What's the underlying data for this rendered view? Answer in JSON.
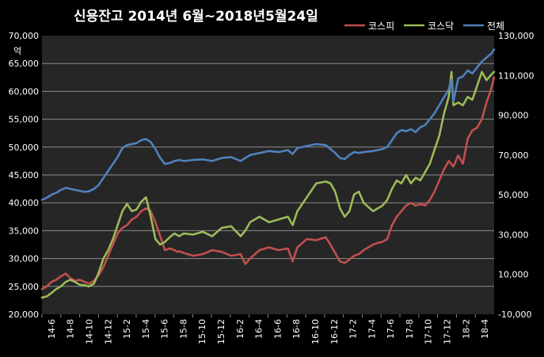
{
  "chart_data": {
    "type": "line",
    "title": "신용잔고  2014년 6월~2018년5월24일",
    "ylabel_left_unit": "억",
    "legend_position": "top-right",
    "grid": true,
    "colors": {
      "background": "#000000",
      "plot_area": "#262626",
      "grid": "#8c8c8c",
      "kospi": "#c0504d",
      "kosdaq": "#9bbb59",
      "total": "#4f81bd"
    },
    "y_left": {
      "min": 20000,
      "max": 70000,
      "ticks": [
        20000,
        25000,
        30000,
        35000,
        40000,
        45000,
        50000,
        55000,
        60000,
        65000,
        70000
      ],
      "tick_labels": [
        "20,000",
        "25,000",
        "30,000",
        "35,000",
        "40,000",
        "45,000",
        "50,000",
        "55,000",
        "60,000",
        "65,000",
        "70,000"
      ]
    },
    "y_right": {
      "min": -10000,
      "max": 130000,
      "ticks": [
        -10000,
        10000,
        30000,
        50000,
        70000,
        90000,
        110000,
        130000
      ],
      "tick_labels": [
        "-10,000",
        "10,000",
        "30,000",
        "50,000",
        "70,000",
        "90,000",
        "110,000",
        "130,000"
      ]
    },
    "x_tick_labels": [
      "14-6",
      "14-8",
      "14-10",
      "14-12",
      "15-2",
      "15-4",
      "15-6",
      "15-8",
      "15-10",
      "15-12",
      "16-2",
      "16-4",
      "16-6",
      "16-8",
      "16-10",
      "16-12",
      "17-2",
      "17-4",
      "17-6",
      "17-8",
      "17-10",
      "17-12",
      "18-2",
      "18-4"
    ],
    "x_range": [
      0,
      47.8
    ],
    "series": [
      {
        "name": "코스피",
        "key": "kospi",
        "axis": "left",
        "x": [
          0,
          0.5,
          1,
          1.5,
          2,
          2.5,
          3,
          3.5,
          4,
          4.5,
          5,
          5.5,
          6,
          6.5,
          7,
          7.5,
          8,
          8.5,
          9,
          9.5,
          10,
          10.5,
          11,
          11.5,
          12,
          12.5,
          13,
          13.5,
          14,
          14.3,
          14.5,
          15,
          16,
          17,
          18,
          19,
          20,
          21,
          21.5,
          22,
          23,
          24,
          25,
          26,
          26.5,
          27,
          28,
          29,
          30,
          30.5,
          31,
          31.5,
          32,
          32.5,
          33,
          33.5,
          34,
          35,
          35.5,
          36,
          36.5,
          37,
          37.5,
          38,
          38.5,
          39,
          39.5,
          40,
          40.5,
          41,
          41.5,
          42,
          42.5,
          43,
          43.5,
          44,
          44.5,
          45,
          45.5,
          46,
          46.5,
          47,
          47.5,
          47.8
        ],
        "values": [
          24500,
          25000,
          25800,
          26200,
          26800,
          27300,
          26500,
          26000,
          26200,
          25800,
          25500,
          26000,
          27000,
          28500,
          30500,
          32500,
          34500,
          35500,
          36000,
          37000,
          37500,
          38500,
          39000,
          38500,
          36500,
          34000,
          31500,
          31800,
          31500,
          31200,
          31300,
          31000,
          30500,
          30800,
          31500,
          31200,
          30500,
          30800,
          29000,
          30000,
          31500,
          32000,
          31500,
          31800,
          29500,
          32000,
          33500,
          33300,
          33800,
          32500,
          31000,
          29500,
          29200,
          29800,
          30500,
          30800,
          31500,
          32500,
          32800,
          33000,
          33500,
          36000,
          37500,
          38500,
          39500,
          40000,
          39500,
          39800,
          39500,
          40500,
          42000,
          44000,
          46000,
          47500,
          46500,
          48500,
          47000,
          51500,
          53000,
          53500,
          55000,
          58000,
          60500,
          62500
        ]
      },
      {
        "name": "코스닥",
        "key": "kosdaq",
        "axis": "left",
        "x": [
          0,
          0.5,
          1,
          1.5,
          2,
          2.5,
          3,
          3.5,
          4,
          4.5,
          5,
          5.5,
          6,
          6.5,
          7,
          7.5,
          8,
          8.5,
          9,
          9.5,
          10,
          10.5,
          11,
          11.5,
          12,
          12.5,
          13,
          13.5,
          14,
          14.5,
          15,
          16,
          17,
          18,
          19,
          20,
          21,
          21.5,
          22,
          23,
          24,
          25,
          26,
          26.5,
          27,
          28,
          29,
          30,
          30.5,
          31,
          31.5,
          32,
          32.5,
          33,
          33.5,
          34,
          35,
          35.5,
          36,
          36.5,
          37,
          37.5,
          38,
          38.5,
          39,
          39.5,
          40,
          40.5,
          41,
          41.5,
          42,
          42.5,
          43,
          43.3,
          43.5,
          44,
          44.5,
          45,
          45.5,
          46,
          46.5,
          47,
          47.5,
          47.8
        ],
        "values": [
          23000,
          23200,
          23800,
          24500,
          25000,
          25800,
          26200,
          25800,
          25300,
          25200,
          25000,
          25500,
          27500,
          30000,
          31500,
          33500,
          36000,
          38500,
          39800,
          38500,
          38800,
          40200,
          41000,
          37500,
          33500,
          32500,
          33000,
          33800,
          34500,
          34000,
          34500,
          34300,
          34800,
          34000,
          35500,
          35800,
          34000,
          35000,
          36500,
          37500,
          36500,
          37000,
          37500,
          36000,
          38500,
          41000,
          43500,
          43800,
          43500,
          42000,
          39000,
          37500,
          38500,
          41500,
          42000,
          40000,
          38500,
          39000,
          39500,
          40500,
          42500,
          44000,
          43500,
          45000,
          43500,
          44500,
          44000,
          45500,
          47000,
          49500,
          52000,
          56000,
          59000,
          63500,
          57500,
          58000,
          57500,
          59000,
          58500,
          61000,
          63500,
          62000,
          63000,
          63500
        ]
      },
      {
        "name": "전체",
        "key": "total",
        "axis": "right",
        "x": [
          0,
          0.5,
          1,
          1.5,
          2,
          2.5,
          3,
          3.5,
          4,
          4.5,
          5,
          5.5,
          6,
          6.5,
          7,
          7.5,
          8,
          8.5,
          9,
          9.5,
          10,
          10.5,
          11,
          11.5,
          12,
          12.5,
          13,
          13.5,
          14,
          14.5,
          15,
          16,
          17,
          18,
          19,
          20,
          21,
          22,
          23,
          24,
          25,
          26,
          26.5,
          27,
          28,
          29,
          30,
          30.5,
          31,
          31.5,
          32,
          32.5,
          33,
          33.5,
          34,
          35,
          35.5,
          36,
          36.5,
          37,
          37.5,
          38,
          38.5,
          39,
          39.5,
          40,
          40.5,
          41,
          41.5,
          42,
          42.5,
          43,
          43.3,
          43.5,
          44,
          44.5,
          45,
          45.5,
          46,
          46.5,
          47,
          47.5,
          47.8
        ],
        "values": [
          47500,
          48500,
          50000,
          51000,
          52500,
          53500,
          53000,
          52500,
          52000,
          51500,
          51800,
          53000,
          55000,
          58500,
          62000,
          65500,
          69000,
          73500,
          75000,
          75500,
          76000,
          77500,
          78000,
          76500,
          73000,
          68500,
          65500,
          66000,
          67000,
          67500,
          67000,
          67500,
          67800,
          67000,
          68500,
          69000,
          67000,
          70000,
          71000,
          72000,
          71500,
          72500,
          70500,
          73500,
          74500,
          75500,
          75000,
          73000,
          71000,
          68500,
          68000,
          70000,
          71500,
          71000,
          71500,
          72000,
          72500,
          73000,
          74000,
          77500,
          81000,
          82500,
          82000,
          83000,
          81500,
          84000,
          85000,
          88000,
          91000,
          95000,
          99000,
          103000,
          108000,
          97000,
          108500,
          109500,
          112500,
          111000,
          114000,
          117000,
          119000,
          121000,
          123000
        ]
      }
    ]
  }
}
